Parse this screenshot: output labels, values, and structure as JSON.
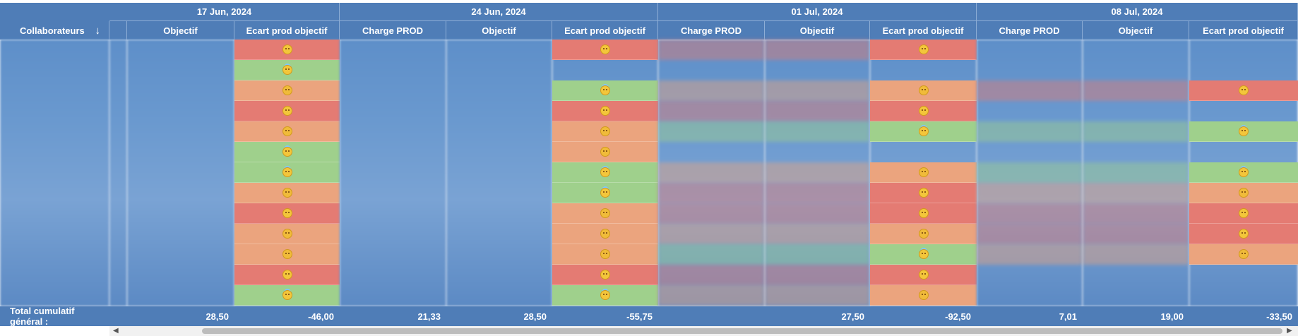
{
  "header": {
    "collab_label": "Collaborateurs",
    "sort_icon": "arrow-down-icon"
  },
  "weeks": [
    {
      "label": "17 Jun, 2024"
    },
    {
      "label": "24 Jun, 2024"
    },
    {
      "label": "01 Jul, 2024"
    },
    {
      "label": "08 Jul, 2024"
    }
  ],
  "columns": [
    {
      "label": ""
    },
    {
      "label": "Objectif"
    },
    {
      "label": "Ecart prod objectif"
    },
    {
      "label": "Charge PROD"
    },
    {
      "label": "Objectif"
    },
    {
      "label": "Ecart prod objectif"
    },
    {
      "label": "Charge PROD"
    },
    {
      "label": "Objectif"
    },
    {
      "label": "Ecart prod objectif"
    },
    {
      "label": "Charge PROD"
    },
    {
      "label": "Objectif"
    },
    {
      "label": "Ecart prod objectif"
    }
  ],
  "status_colors": {
    "red": "#e47b73",
    "orange": "#eba47e",
    "green": "#9fd08c"
  },
  "ecart_cells": {
    "col2": [
      "red",
      "green",
      "orange",
      "red",
      "orange",
      "green",
      "green",
      "orange",
      "red",
      "orange",
      "orange",
      "red",
      "green"
    ],
    "col5": [
      "red",
      "",
      "green",
      "red",
      "orange",
      "orange",
      "green",
      "green",
      "orange",
      "orange",
      "orange",
      "red",
      "green"
    ],
    "col8": [
      "red",
      "",
      "orange",
      "red",
      "green",
      "",
      "orange",
      "red",
      "red",
      "orange",
      "green",
      "red",
      "orange"
    ],
    "col11": [
      "",
      "",
      "red",
      "",
      "green",
      "",
      "green",
      "orange",
      "red",
      "red",
      "orange",
      "",
      ""
    ]
  },
  "totals": {
    "label": "Total cumulatif général :",
    "values": [
      "",
      "28,50",
      "-46,00",
      "21,33",
      "28,50",
      "-55,75",
      "",
      "27,50",
      "-92,50",
      "7,01",
      "19,00",
      "-33,50"
    ]
  }
}
